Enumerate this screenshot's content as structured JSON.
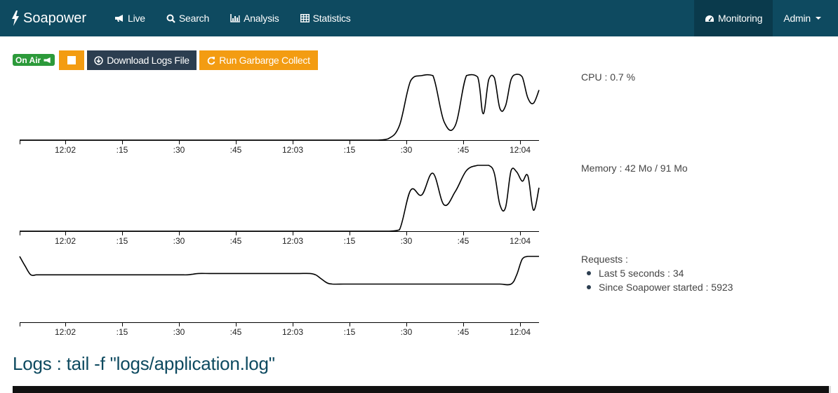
{
  "nav": {
    "brand": "Soapower",
    "items": [
      {
        "label": "Live",
        "icon": "bullhorn-icon"
      },
      {
        "label": "Search",
        "icon": "search-icon"
      },
      {
        "label": "Analysis",
        "icon": "bar-chart-icon"
      },
      {
        "label": "Statistics",
        "icon": "table-icon"
      }
    ],
    "monitoring": "Monitoring",
    "admin": "Admin"
  },
  "toolbar": {
    "on_air": "On Air",
    "download": "Download Logs File",
    "gc": "Run Garbarge Collect"
  },
  "colors": {
    "navbar": "#0e4a60",
    "navbar_active": "#0a3a4c",
    "orange": "#f39c12",
    "dark": "#2c3e50",
    "green": "#2c9a3a"
  },
  "stats": {
    "cpu": "CPU : 0.7 %",
    "memory": "Memory : 42 Mo / 91 Mo",
    "requests_title": "Requests :",
    "last5": "Last 5 seconds : 34",
    "since": "Since Soapower started : 5923"
  },
  "logs": {
    "title": "Logs : tail -f \"logs/application.log\""
  },
  "chart_data": [
    {
      "type": "line",
      "name": "cpu",
      "ticks": [
        "12:02",
        ":15",
        ":30",
        ":45",
        "12:03",
        ":15",
        ":30",
        ":45",
        "12:04"
      ],
      "ylim": [
        0,
        100
      ],
      "x": [
        0,
        4,
        8,
        12,
        16,
        20,
        24,
        28,
        32,
        36,
        40,
        44,
        48,
        52,
        56,
        60,
        64,
        68,
        72,
        76,
        80,
        84,
        88,
        92,
        96,
        100,
        104,
        108,
        112,
        116,
        120,
        124,
        128,
        132,
        136,
        140,
        144,
        148,
        152,
        156,
        160,
        164,
        166,
        168,
        170,
        172,
        174,
        176,
        178,
        180,
        182,
        184,
        186
      ],
      "values": [
        0,
        0,
        0,
        0,
        0,
        0,
        0,
        0,
        0,
        0,
        0,
        0,
        0,
        0,
        0,
        0,
        0,
        0,
        0,
        0,
        0,
        0,
        0,
        0,
        0,
        0,
        0,
        0,
        0,
        0,
        0,
        0,
        0,
        2,
        22,
        90,
        98,
        98,
        28,
        22,
        98,
        96,
        40,
        92,
        95,
        48,
        52,
        92,
        100,
        96,
        64,
        56,
        76
      ]
    },
    {
      "type": "line",
      "name": "memory",
      "ticks": [
        "12:02",
        ":15",
        ":30",
        ":45",
        "12:03",
        ":15",
        ":30",
        ":45",
        "12:04"
      ],
      "ylim": [
        0,
        100
      ],
      "x": [
        0,
        4,
        8,
        12,
        16,
        20,
        24,
        28,
        32,
        36,
        40,
        44,
        48,
        52,
        56,
        60,
        64,
        68,
        72,
        76,
        80,
        84,
        88,
        92,
        96,
        100,
        104,
        108,
        112,
        116,
        120,
        124,
        128,
        132,
        136,
        140,
        144,
        148,
        152,
        156,
        160,
        164,
        166,
        168,
        170,
        172,
        174,
        176,
        178,
        180,
        182,
        184,
        186
      ],
      "values": [
        0,
        0,
        0,
        0,
        0,
        0,
        0,
        0,
        0,
        0,
        0,
        0,
        0,
        0,
        0,
        0,
        0,
        0,
        0,
        0,
        0,
        0,
        0,
        0,
        0,
        0,
        0,
        0,
        0,
        0,
        0,
        0,
        0,
        0,
        2,
        62,
        55,
        88,
        40,
        60,
        92,
        100,
        100,
        100,
        88,
        40,
        36,
        92,
        90,
        76,
        84,
        32,
        66
      ]
    },
    {
      "type": "line",
      "name": "requests",
      "ticks": [
        "12:02",
        ":15",
        ":30",
        ":45",
        "12:03",
        ":15",
        ":30",
        ":45",
        "12:04"
      ],
      "ylim": [
        0,
        100
      ],
      "x": [
        0,
        2,
        4,
        6,
        8,
        10,
        12,
        14,
        16,
        18,
        20,
        24,
        28,
        32,
        36,
        40,
        44,
        48,
        52,
        56,
        58,
        60,
        62,
        64,
        68,
        72,
        76,
        80,
        84,
        88,
        92,
        96,
        100,
        104,
        106,
        108,
        110,
        112,
        116,
        120,
        124,
        128,
        132,
        136,
        140,
        144,
        148,
        152,
        156,
        160,
        164,
        168,
        172,
        176,
        178,
        180,
        182,
        184,
        186
      ],
      "values": [
        100,
        85,
        72,
        72,
        72,
        72,
        72,
        72,
        72,
        72,
        72,
        72,
        72,
        72,
        72,
        72,
        72,
        72,
        72,
        72,
        72,
        72,
        73,
        74,
        74,
        74,
        74,
        74,
        74,
        74,
        74,
        74,
        74,
        74,
        72,
        66,
        60,
        58,
        58,
        58,
        58,
        58,
        58,
        58,
        58,
        58,
        58,
        58,
        58,
        58,
        58,
        58,
        58,
        58,
        72,
        96,
        100,
        100,
        100
      ]
    }
  ]
}
